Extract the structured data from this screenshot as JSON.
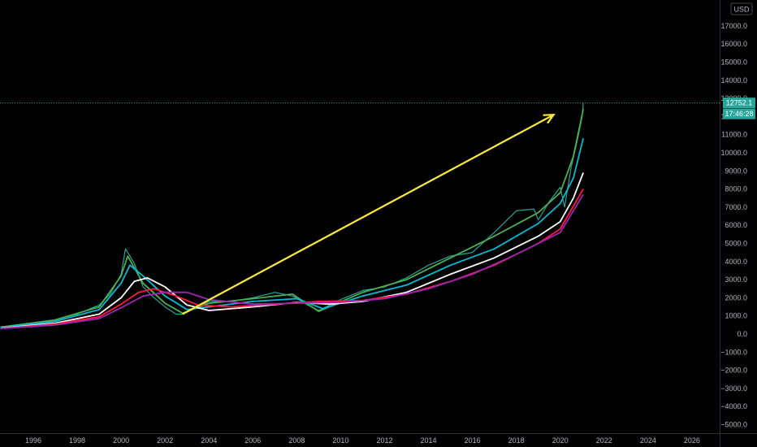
{
  "currency": "USD",
  "price": {
    "last_value": "12752.1",
    "countdown": "17:46:28",
    "color": "#26a69a"
  },
  "y_axis": {
    "labels": [
      "17000.0",
      "16000.0",
      "15000.0",
      "14000.0",
      "13000.0",
      "12000.0",
      "11000.0",
      "10000.0",
      "9000.0",
      "8000.0",
      "7000.0",
      "6000.0",
      "5000.0",
      "4000.0",
      "3000.0",
      "2000.0",
      "1000.0",
      "0.0",
      "−1000.0",
      "−2000.0",
      "−3000.0",
      "−4000.0",
      "−5000.0"
    ],
    "values": [
      17000,
      16000,
      15000,
      14000,
      13000,
      12000,
      11000,
      10000,
      9000,
      8000,
      7000,
      6000,
      5000,
      4000,
      3000,
      2000,
      1000,
      0,
      -1000,
      -2000,
      -3000,
      -4000,
      -5000
    ]
  },
  "x_axis": {
    "labels": [
      "1996",
      "1998",
      "2000",
      "2002",
      "2004",
      "2006",
      "2008",
      "2010",
      "2012",
      "2014",
      "2016",
      "2018",
      "2020",
      "2022",
      "2024",
      "2026"
    ],
    "years": [
      1996,
      1998,
      2000,
      2002,
      2004,
      2006,
      2008,
      2010,
      2012,
      2014,
      2016,
      2018,
      2020,
      2022,
      2024,
      2026
    ]
  },
  "chart_data": {
    "type": "line",
    "xlabel": "",
    "ylabel": "",
    "ylim": [
      -5500,
      18000
    ],
    "xlim": [
      1994.5,
      2027.3
    ],
    "grid": false,
    "last_price": 12752.1,
    "series": [
      {
        "color": "#26a69a",
        "x": [
          1994.5,
          1996,
          1997,
          1998,
          1999,
          1999.5,
          2000,
          2000.2,
          2000.6,
          2001,
          2001.5,
          2002,
          2002.5,
          2002.8,
          2003.5,
          2004,
          2005,
          2006,
          2007,
          2007.8,
          2008.5,
          2009,
          2010,
          2011,
          2012,
          2013,
          2014,
          2015,
          2016,
          2017,
          2018,
          2018.8,
          2019,
          2019.5,
          2020,
          2020.2,
          2020.5,
          2020.8,
          2021,
          2021.05
        ],
        "y": [
          400,
          500,
          800,
          1100,
          1600,
          2200,
          3300,
          4700,
          3900,
          2600,
          2000,
          1500,
          1100,
          1100,
          1500,
          1800,
          1800,
          2000,
          2300,
          2100,
          1600,
          1300,
          1900,
          2400,
          2600,
          3100,
          3800,
          4300,
          4500,
          5600,
          6800,
          6900,
          6300,
          7300,
          8100,
          7000,
          9200,
          10800,
          12000,
          12750
        ]
      },
      {
        "color": "#4caf50",
        "x": [
          1994.5,
          1997,
          1999,
          2000,
          2000.3,
          2001,
          2002,
          2002.8,
          2004,
          2006,
          2007.8,
          2009,
          2011,
          2013,
          2015,
          2017,
          2019,
          2020,
          2020.6,
          2021.05
        ],
        "y": [
          380,
          780,
          1500,
          3200,
          4300,
          2800,
          1700,
          1150,
          1700,
          1950,
          2200,
          1250,
          2300,
          3000,
          4200,
          5400,
          6700,
          7800,
          9800,
          12400
        ]
      },
      {
        "color": "#00bcd4",
        "x": [
          1994.5,
          1997,
          1999,
          2000,
          2000.4,
          2001,
          2002,
          2003,
          2004,
          2006,
          2008,
          2009.2,
          2011,
          2013,
          2015,
          2017,
          2019,
          2020,
          2020.6,
          2021.05
        ],
        "y": [
          350,
          700,
          1350,
          2800,
          3800,
          3200,
          2100,
          1350,
          1500,
          1800,
          1950,
          1400,
          2100,
          2700,
          3800,
          4700,
          6100,
          7200,
          8600,
          10800
        ]
      },
      {
        "color": "#ffffff",
        "x": [
          1994.5,
          1997,
          1999,
          2000,
          2000.6,
          2001.2,
          2002,
          2003,
          2004,
          2006,
          2008,
          2009.5,
          2011,
          2013,
          2015,
          2017,
          2019,
          2020,
          2020.6,
          2021.05
        ],
        "y": [
          320,
          600,
          1100,
          2000,
          2900,
          3100,
          2600,
          1600,
          1300,
          1500,
          1750,
          1650,
          1800,
          2300,
          3300,
          4200,
          5400,
          6200,
          7500,
          8900
        ]
      },
      {
        "color": "#ff1744",
        "x": [
          1994.5,
          1997,
          1999,
          2000,
          2000.8,
          2001.5,
          2002.5,
          2003.5,
          2005,
          2007,
          2009,
          2011,
          2013,
          2015,
          2017,
          2019,
          2020,
          2021.05
        ],
        "y": [
          300,
          550,
          950,
          1650,
          2300,
          2500,
          2100,
          1600,
          1500,
          1650,
          1800,
          1850,
          2200,
          2900,
          3800,
          5000,
          5800,
          8000
        ]
      },
      {
        "color": "#9c27b0",
        "x": [
          1994.5,
          1997,
          1999,
          2000,
          2001,
          2002,
          2003,
          2004,
          2006,
          2008,
          2010,
          2012,
          2014,
          2016,
          2018,
          2020,
          2021.05
        ],
        "y": [
          300,
          500,
          850,
          1450,
          2100,
          2300,
          2300,
          1900,
          1650,
          1700,
          1750,
          1950,
          2500,
          3300,
          4400,
          5600,
          7700
        ]
      }
    ],
    "annotation": {
      "type": "arrow",
      "color": "#ffeb3b",
      "from": [
        2002.8,
        1100
      ],
      "to": [
        2019.7,
        12100
      ]
    }
  }
}
